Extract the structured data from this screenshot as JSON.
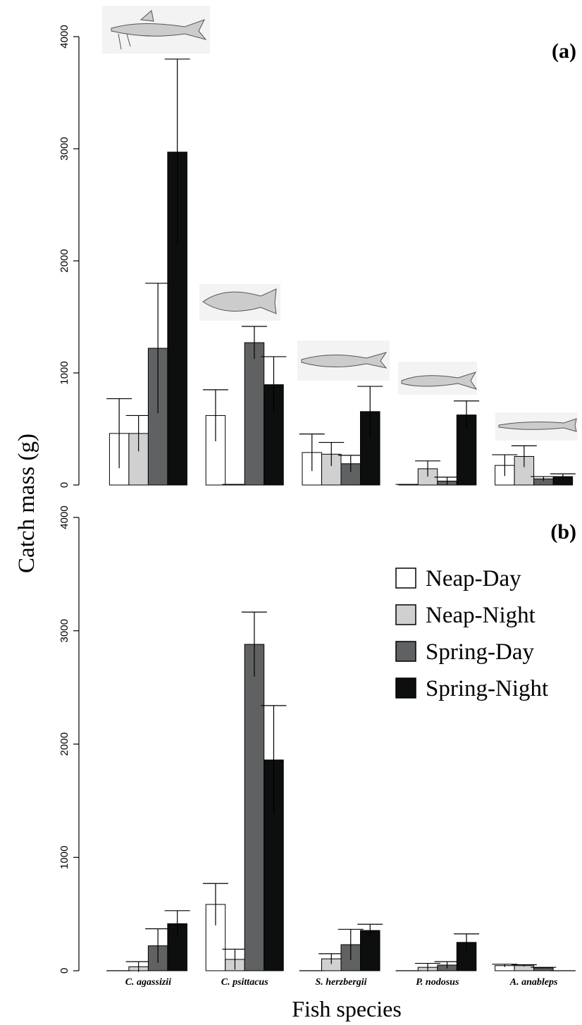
{
  "chart_data": [
    {
      "type": "bar",
      "panel_label": "(a)",
      "ylim": [
        0,
        4000
      ],
      "yticks": [
        0,
        1000,
        2000,
        3000,
        4000
      ],
      "series": [
        {
          "color": "#ffffff",
          "values": [
            460,
            620,
            290,
            5,
            175
          ],
          "errors": [
            310,
            230,
            165,
            0,
            95
          ]
        },
        {
          "color": "#d0d0d0",
          "values": [
            460,
            5,
            275,
            145,
            255
          ],
          "errors": [
            160,
            0,
            105,
            70,
            95
          ]
        },
        {
          "color": "#5f6163",
          "values": [
            1220,
            1270,
            190,
            35,
            55
          ],
          "errors": [
            580,
            145,
            75,
            35,
            20
          ]
        },
        {
          "color": "#0d0f0e",
          "values": [
            2970,
            895,
            655,
            625,
            75
          ],
          "errors": [
            830,
            250,
            225,
            125,
            25
          ]
        }
      ]
    },
    {
      "type": "bar",
      "panel_label": "(b)",
      "ylabel": "Catch mass (g)",
      "xlabel": "Fish species",
      "categories": [
        "C. agassizii",
        "C. psittacus",
        "S. herzbergii",
        "P. nodosus",
        "A. anableps"
      ],
      "ylim": [
        0,
        4000
      ],
      "yticks": [
        0,
        1000,
        2000,
        3000,
        4000
      ],
      "series": [
        {
          "name": "Neap-Day",
          "color": "#ffffff",
          "values": [
            0,
            585,
            0,
            0,
            45
          ],
          "errors": [
            0,
            185,
            0,
            0,
            12
          ]
        },
        {
          "name": "Neap-Night",
          "color": "#d0d0d0",
          "values": [
            35,
            100,
            105,
            30,
            45
          ],
          "errors": [
            45,
            90,
            45,
            35,
            8
          ]
        },
        {
          "name": "Spring-Day",
          "color": "#5f6163",
          "values": [
            220,
            2880,
            230,
            50,
            25
          ],
          "errors": [
            150,
            285,
            135,
            30,
            5
          ]
        },
        {
          "name": "Spring-Night",
          "color": "#0d0f0e",
          "values": [
            415,
            1860,
            355,
            250,
            0
          ],
          "errors": [
            115,
            480,
            55,
            75,
            0
          ]
        }
      ]
    }
  ]
}
